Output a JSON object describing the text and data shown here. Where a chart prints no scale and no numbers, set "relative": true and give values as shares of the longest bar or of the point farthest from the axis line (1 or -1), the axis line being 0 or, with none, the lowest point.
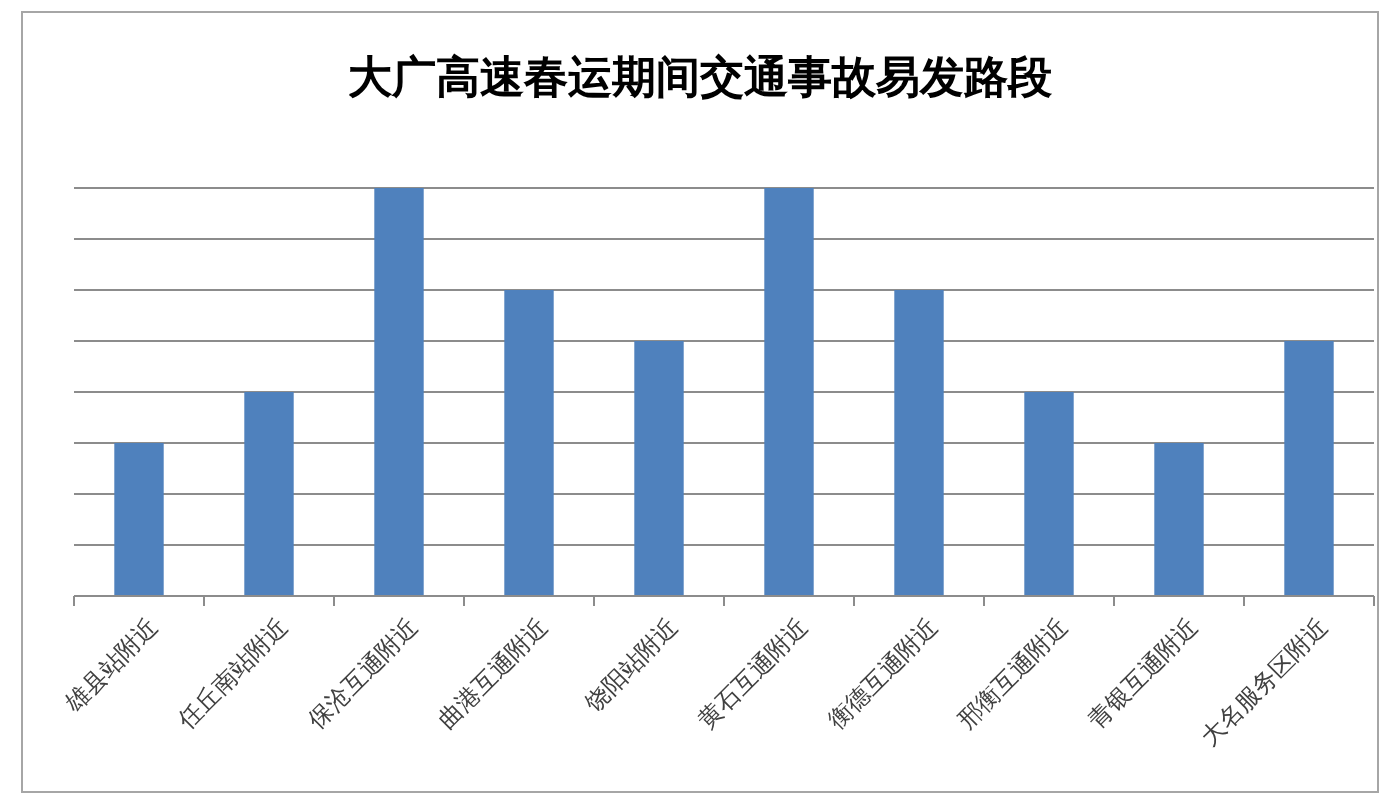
{
  "chart_data": {
    "type": "bar",
    "title": "大广高速春运期间交通事故易发路段",
    "categories": [
      "雄县站附近",
      "任丘南站附近",
      "保沧互通附近",
      "曲港互通附近",
      "饶阳站附近",
      "黄石互通附近",
      "衡德互通附近",
      "邢衡互通附近",
      "青银互通附近",
      "大名服务区附近"
    ],
    "values": [
      0.375,
      0.5,
      1,
      0.75,
      0.625,
      1,
      0.75,
      0.5,
      0.375,
      0.625
    ],
    "color": "#4f81bd",
    "relative": true,
    "grid": "y"
  }
}
